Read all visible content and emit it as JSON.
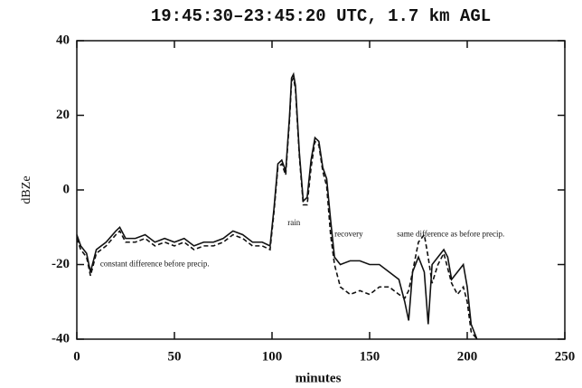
{
  "chart_data": {
    "type": "line",
    "title": "19:45:30–23:45:20 UTC,  1.7 km AGL",
    "xlabel": "minutes",
    "ylabel": "dBZe",
    "x": [
      0,
      2,
      5,
      7,
      10,
      15,
      20,
      22,
      25,
      30,
      35,
      40,
      45,
      50,
      55,
      60,
      65,
      70,
      75,
      80,
      85,
      90,
      95,
      99,
      101,
      103,
      105,
      107,
      109,
      110,
      111,
      112,
      114,
      116,
      118,
      120,
      122,
      124,
      126,
      128,
      130,
      132,
      135,
      140,
      145,
      150,
      155,
      160,
      165,
      168,
      170,
      172,
      175,
      178,
      180,
      182,
      185,
      188,
      190,
      192,
      195,
      198,
      200,
      202,
      205
    ],
    "series": [
      {
        "color": "#111111",
        "dash": false,
        "values": [
          -12,
          -15,
          -17,
          -22,
          -16,
          -14,
          -11,
          -10,
          -13,
          -13,
          -12,
          -14,
          -13,
          -14,
          -13,
          -15,
          -14,
          -14,
          -13,
          -11,
          -12,
          -14,
          -14,
          -15,
          -5,
          7,
          8,
          5,
          20,
          30,
          31,
          28,
          10,
          -3,
          -2,
          8,
          14,
          13,
          6,
          3,
          -8,
          -18,
          -20,
          -19,
          -19,
          -20,
          -20,
          -22,
          -24,
          -30,
          -35,
          -22,
          -18,
          -22,
          -36,
          -20,
          -18,
          -16,
          -18,
          -24,
          -22,
          -20,
          -26,
          -36,
          -40
        ]
      },
      {
        "color": "#111111",
        "dash": true,
        "values": [
          -13,
          -16,
          -18,
          -23,
          -17,
          -15,
          -12,
          -11,
          -14,
          -14,
          -13,
          -15,
          -14,
          -15,
          -14,
          -16,
          -15,
          -15,
          -14,
          -12,
          -13,
          -15,
          -15,
          -16,
          -6,
          6,
          7,
          4,
          19,
          29,
          30,
          27,
          9,
          -4,
          -4,
          6,
          13,
          12,
          5,
          1,
          -12,
          -20,
          -26,
          -28,
          -27,
          -28,
          -26,
          -26,
          -28,
          -29,
          -27,
          -22,
          -14,
          -12,
          -18,
          -25,
          -20,
          -17,
          -21,
          -25,
          -28,
          -26,
          -30,
          -38,
          -40
        ]
      }
    ],
    "annotations": [
      {
        "text": "constant difference before precip.",
        "x": 12,
        "y": -20
      },
      {
        "text": "rain",
        "x": 108,
        "y": -9
      },
      {
        "text": "recovery",
        "x": 132,
        "y": -12
      },
      {
        "text": "same difference as before precip.",
        "x": 164,
        "y": -12
      }
    ],
    "xlim": [
      0,
      250
    ],
    "xticks": [
      0,
      50,
      100,
      150,
      200,
      250
    ],
    "ylim": [
      -40,
      40
    ],
    "yticks": [
      -40,
      -20,
      0,
      20,
      40
    ]
  }
}
